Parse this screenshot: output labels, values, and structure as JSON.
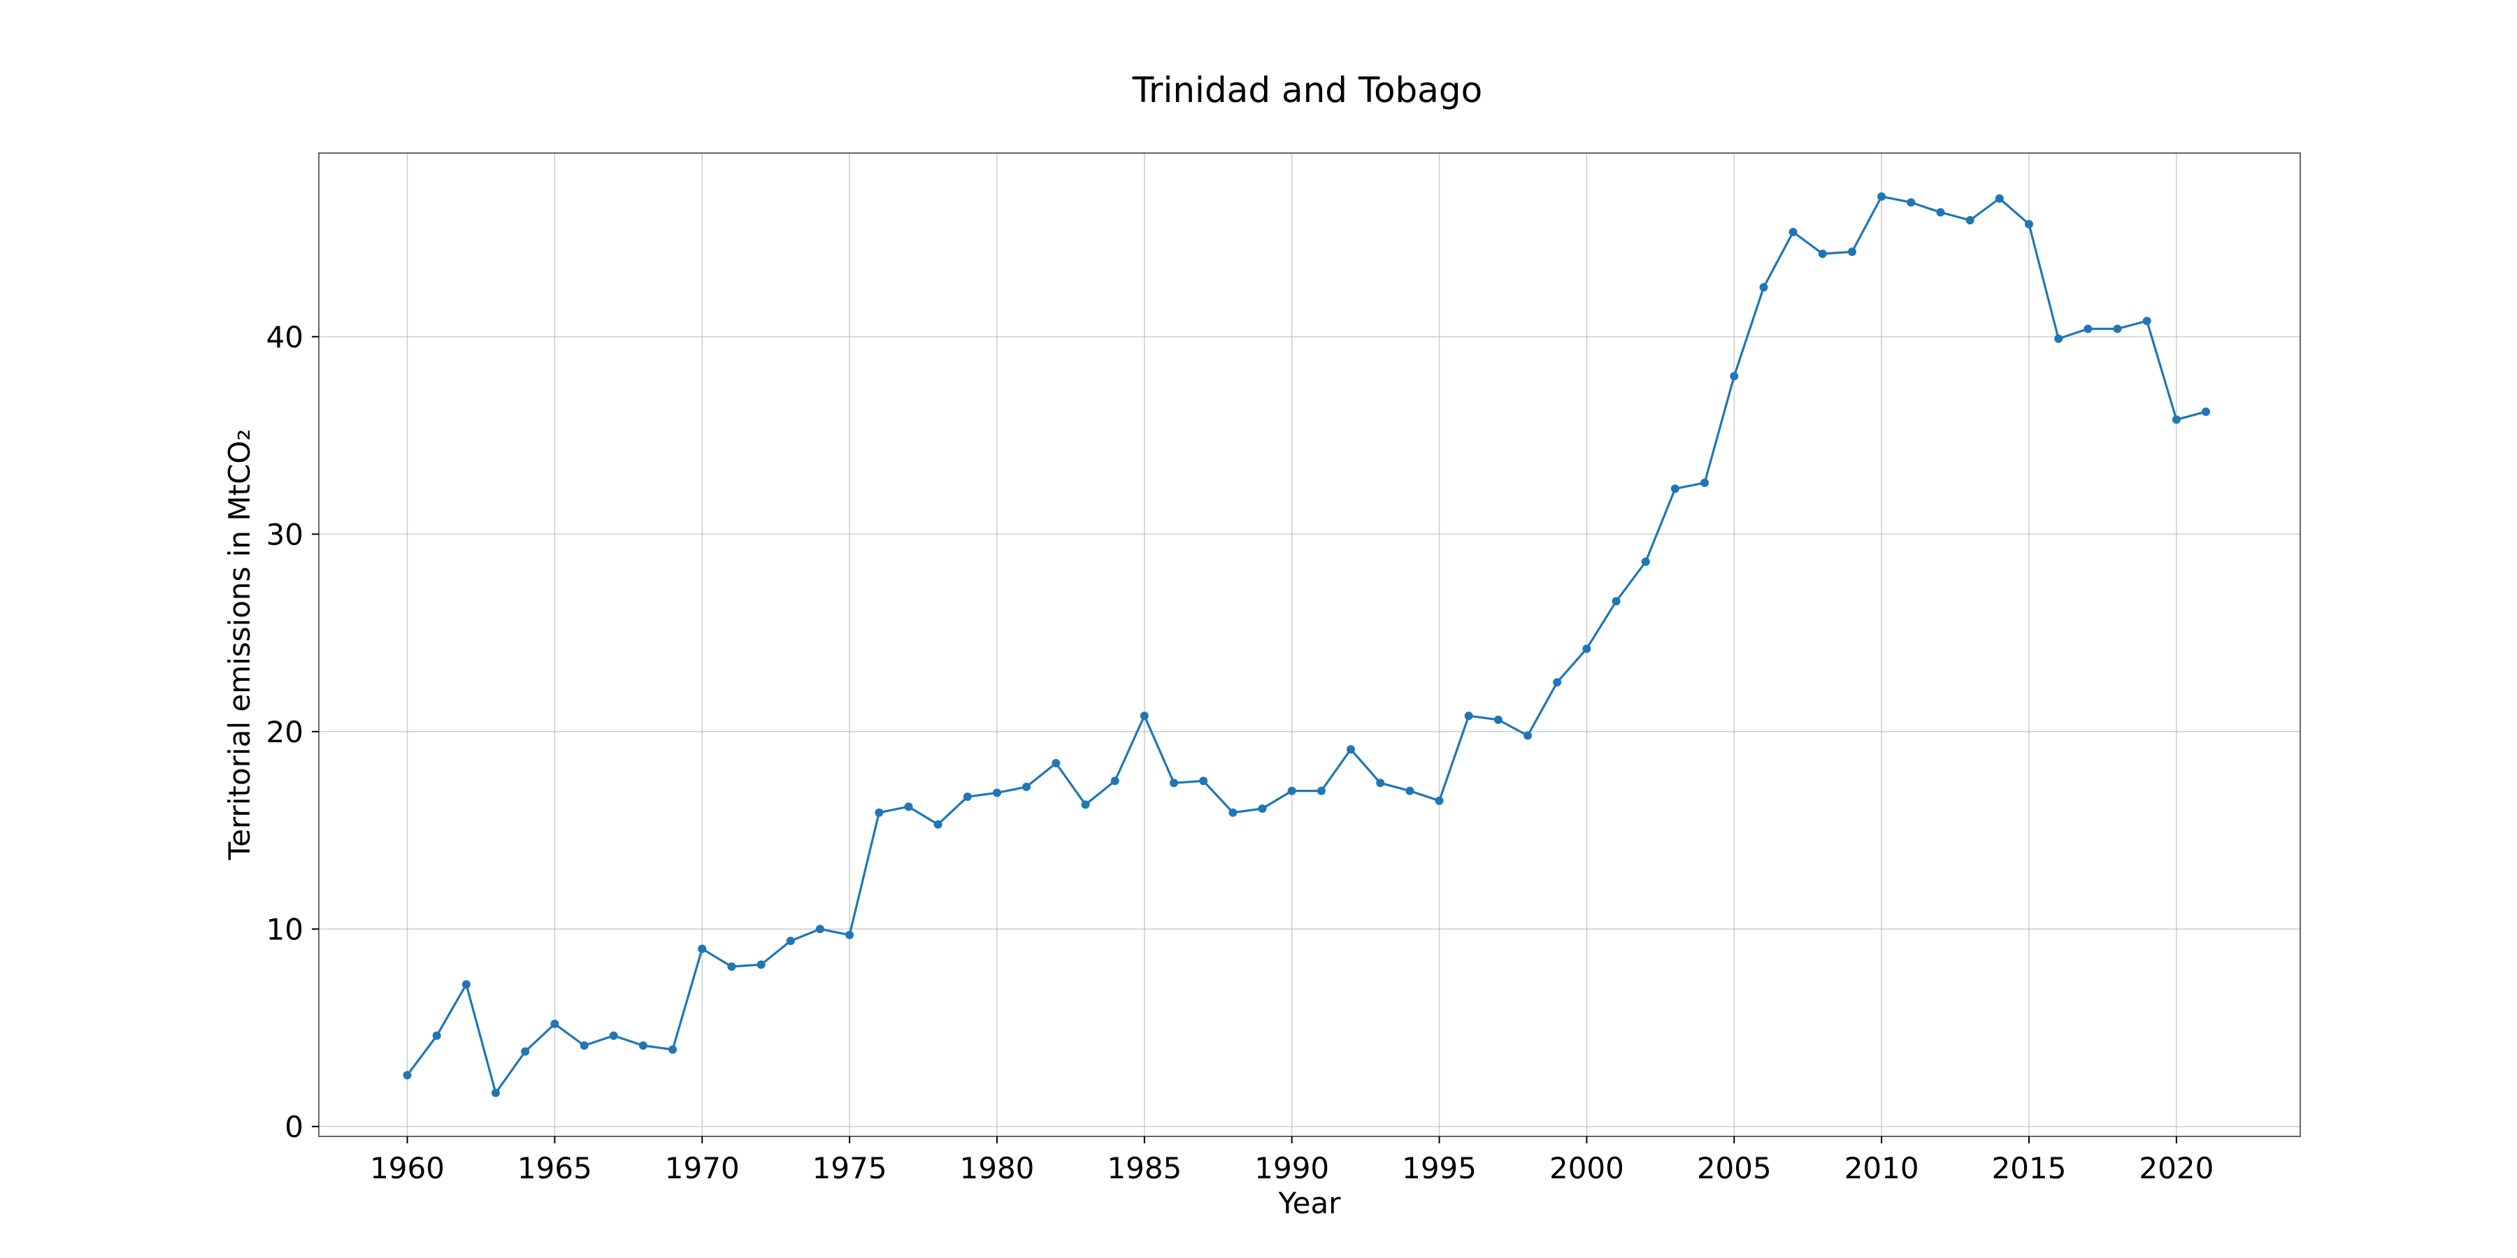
{
  "chart_data": {
    "type": "line",
    "title": "Trinidad and Tobago",
    "xlabel": "Year",
    "ylabel": "Territorial emissions in MtCO₂",
    "xlim": [
      1957,
      2024.2
    ],
    "ylim": [
      -0.5,
      49.3
    ],
    "xticks": [
      1960,
      1965,
      1970,
      1975,
      1980,
      1985,
      1990,
      1995,
      2000,
      2005,
      2010,
      2015,
      2020
    ],
    "yticks": [
      0,
      10,
      20,
      30,
      40
    ],
    "grid": true,
    "line_color": "#1f77b4",
    "x": [
      1960,
      1961,
      1962,
      1963,
      1964,
      1965,
      1966,
      1967,
      1968,
      1969,
      1970,
      1971,
      1972,
      1973,
      1974,
      1975,
      1976,
      1977,
      1978,
      1979,
      1980,
      1981,
      1982,
      1983,
      1984,
      1985,
      1986,
      1987,
      1988,
      1989,
      1990,
      1991,
      1992,
      1993,
      1994,
      1995,
      1996,
      1997,
      1998,
      1999,
      2000,
      2001,
      2002,
      2003,
      2004,
      2005,
      2006,
      2007,
      2008,
      2009,
      2010,
      2011,
      2012,
      2013,
      2014,
      2015,
      2016,
      2017,
      2018,
      2019,
      2020,
      2021
    ],
    "series": [
      {
        "values": [
          2.6,
          4.6,
          7.2,
          1.7,
          3.8,
          5.2,
          4.1,
          4.6,
          4.1,
          3.9,
          9.0,
          8.1,
          8.2,
          9.4,
          10.0,
          9.7,
          15.9,
          16.2,
          15.3,
          16.7,
          16.9,
          17.2,
          18.4,
          16.3,
          17.5,
          20.8,
          17.4,
          17.5,
          15.9,
          16.1,
          17.0,
          17.0,
          19.1,
          17.4,
          17.0,
          16.5,
          20.8,
          20.6,
          19.8,
          22.5,
          24.2,
          26.6,
          28.6,
          32.3,
          32.6,
          38.0,
          42.5,
          45.3,
          44.2,
          44.3,
          47.1,
          46.8,
          46.3,
          45.9,
          47.0,
          45.7,
          39.9,
          40.4,
          40.4,
          40.8,
          35.8,
          36.2
        ]
      }
    ]
  }
}
